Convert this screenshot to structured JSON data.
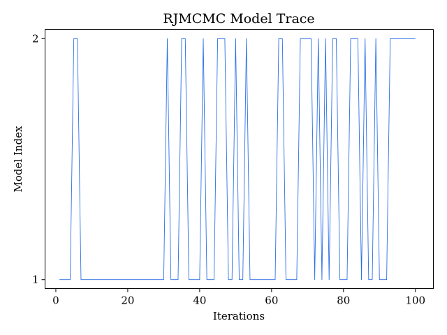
{
  "chart_data": {
    "type": "line",
    "title": "RJMCMC Model Trace",
    "xlabel": "Iterations",
    "ylabel": "Model Index",
    "xlim": [
      -3,
      105
    ],
    "ylim": [
      0.963,
      2.037
    ],
    "xticks": [
      0,
      20,
      40,
      60,
      80,
      100
    ],
    "xtick_labels": [
      "0",
      "20",
      "40",
      "60",
      "80",
      "100"
    ],
    "yticks": [
      1,
      2
    ],
    "ytick_labels": [
      "1",
      "2"
    ],
    "grid": false,
    "series": [
      {
        "color": "#2b6fe6",
        "x": [
          1,
          2,
          3,
          4,
          5,
          6,
          7,
          8,
          9,
          10,
          11,
          12,
          13,
          14,
          15,
          16,
          17,
          18,
          19,
          20,
          21,
          22,
          23,
          24,
          25,
          26,
          27,
          28,
          29,
          30,
          31,
          32,
          33,
          34,
          35,
          36,
          37,
          38,
          39,
          40,
          41,
          42,
          43,
          44,
          45,
          46,
          47,
          48,
          49,
          50,
          51,
          52,
          53,
          54,
          55,
          56,
          57,
          58,
          59,
          60,
          61,
          62,
          63,
          64,
          65,
          66,
          67,
          68,
          69,
          70,
          71,
          72,
          73,
          74,
          75,
          76,
          77,
          78,
          79,
          80,
          81,
          82,
          83,
          84,
          85,
          86,
          87,
          88,
          89,
          90,
          91,
          92,
          93,
          94,
          95,
          96,
          97,
          98,
          99,
          100
        ],
        "values": [
          1,
          1,
          1,
          1,
          2,
          2,
          1,
          1,
          1,
          1,
          1,
          1,
          1,
          1,
          1,
          1,
          1,
          1,
          1,
          1,
          1,
          1,
          1,
          1,
          1,
          1,
          1,
          1,
          1,
          1,
          2,
          1,
          1,
          1,
          2,
          2,
          1,
          1,
          1,
          1,
          2,
          1,
          1,
          1,
          2,
          2,
          2,
          1,
          1,
          2,
          1,
          1,
          2,
          1,
          1,
          1,
          1,
          1,
          1,
          1,
          1,
          2,
          2,
          1,
          1,
          1,
          1,
          2,
          2,
          2,
          2,
          1,
          2,
          1,
          2,
          1,
          2,
          2,
          1,
          1,
          1,
          2,
          2,
          2,
          1,
          2,
          1,
          1,
          2,
          1,
          1,
          1,
          2,
          2,
          2,
          2,
          2,
          2,
          2,
          2
        ]
      }
    ]
  }
}
